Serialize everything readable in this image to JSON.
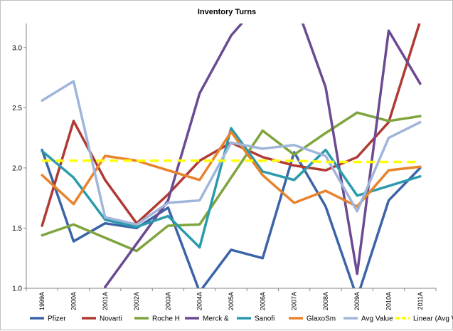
{
  "chart_data": {
    "type": "line",
    "title": "Inventory Turns",
    "xlabel": "",
    "ylabel": "",
    "ylim": [
      1.0,
      3.2
    ],
    "yticks": [
      1.0,
      1.5,
      2.0,
      2.5,
      3.0
    ],
    "ytick_labels": [
      "1.0",
      "1.5",
      "2.0",
      "2.5",
      "3.0"
    ],
    "grid": false,
    "legend_position": "bottom",
    "categories": [
      "1999A",
      "2000A",
      "2001A",
      "2002A",
      "2003A",
      "2004A",
      "2005A",
      "2006A",
      "2007A",
      "2008A",
      "2009A",
      "2010A",
      "2011A"
    ],
    "series": [
      {
        "name": "Pfizer",
        "color": "#3b64a8",
        "style": "solid",
        "values": [
          2.15,
          1.39,
          1.54,
          1.5,
          1.67,
          0.97,
          1.32,
          1.25,
          2.13,
          1.68,
          0.92,
          1.73,
          2.0
        ]
      },
      {
        "name": "Novarti",
        "color": "#b03a33",
        "style": "solid",
        "values": [
          1.52,
          2.39,
          1.9,
          1.54,
          1.78,
          2.06,
          2.21,
          2.09,
          2.02,
          1.98,
          2.09,
          2.38,
          3.22
        ]
      },
      {
        "name": "Roche H",
        "color": "#7ea43d",
        "style": "solid",
        "values": [
          1.44,
          1.53,
          1.42,
          1.31,
          1.52,
          1.53,
          1.92,
          2.31,
          2.11,
          2.29,
          2.46,
          2.39,
          2.43
        ]
      },
      {
        "name": "Merck &",
        "color": "#6b4a92",
        "style": "solid",
        "values": [
          null,
          null,
          1.01,
          1.37,
          1.73,
          2.62,
          3.1,
          3.4,
          3.4,
          2.67,
          1.12,
          3.14,
          2.7
        ]
      },
      {
        "name": "Sanofi",
        "color": "#2c9aad",
        "style": "solid",
        "values": [
          2.14,
          1.92,
          1.57,
          1.51,
          1.6,
          1.34,
          2.33,
          1.97,
          1.9,
          2.15,
          1.77,
          1.85,
          1.93
        ]
      },
      {
        "name": "GlaxoSm",
        "color": "#e8832b",
        "style": "solid",
        "values": [
          1.94,
          1.7,
          2.1,
          2.06,
          1.98,
          1.9,
          2.3,
          1.94,
          1.71,
          1.81,
          1.68,
          1.98,
          2.01
        ]
      },
      {
        "name": "Avg Value",
        "color": "#9fb5da",
        "style": "solid",
        "values": [
          2.56,
          2.72,
          1.59,
          1.53,
          1.71,
          1.73,
          2.21,
          2.16,
          2.19,
          2.1,
          1.64,
          2.25,
          2.38
        ]
      },
      {
        "name": "Linear (Avg Value)",
        "color": "#ffff00",
        "style": "dashed",
        "values": [
          2.06,
          2.06,
          2.06,
          2.06,
          2.06,
          2.06,
          2.06,
          2.06,
          2.06,
          2.05,
          2.05,
          2.05,
          2.05
        ]
      }
    ]
  }
}
